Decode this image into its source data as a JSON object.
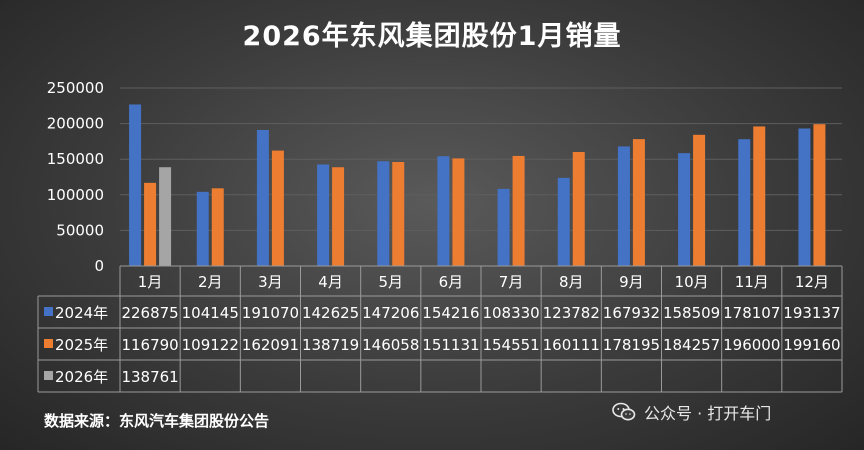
{
  "title": "2026年东风集团股份1月销量",
  "source": "数据来源：东风汽车集团股份公告",
  "watermark": "公众号 · 打开车门",
  "colors": {
    "background": "#3b3b3b",
    "series_2024": "#4472c4",
    "series_2025": "#ed7d31",
    "series_2026": "#a5a5a5",
    "grid": "#5e5e5e",
    "table_border": "#9a9a9a"
  },
  "chart_data": {
    "type": "bar",
    "title": "2026年东风集团股份1月销量",
    "categories": [
      "1月",
      "2月",
      "3月",
      "4月",
      "5月",
      "6月",
      "7月",
      "8月",
      "9月",
      "10月",
      "11月",
      "12月"
    ],
    "series": [
      {
        "name": "2024年",
        "values": [
          226875,
          104145,
          191070,
          142625,
          147206,
          154216,
          108330,
          123782,
          167932,
          158509,
          178107,
          193137
        ]
      },
      {
        "name": "2025年",
        "values": [
          116790,
          109122,
          162091,
          138719,
          146058,
          151131,
          154551,
          160111,
          178195,
          184257,
          196000,
          199160
        ]
      },
      {
        "name": "2026年",
        "values": [
          138761,
          null,
          null,
          null,
          null,
          null,
          null,
          null,
          null,
          null,
          null,
          null
        ]
      }
    ],
    "y_ticks": [
      "0",
      "50000",
      "100000",
      "150000",
      "200000",
      "250000"
    ],
    "ylim": [
      0,
      250000
    ],
    "grid": true,
    "legend": "data-table"
  }
}
